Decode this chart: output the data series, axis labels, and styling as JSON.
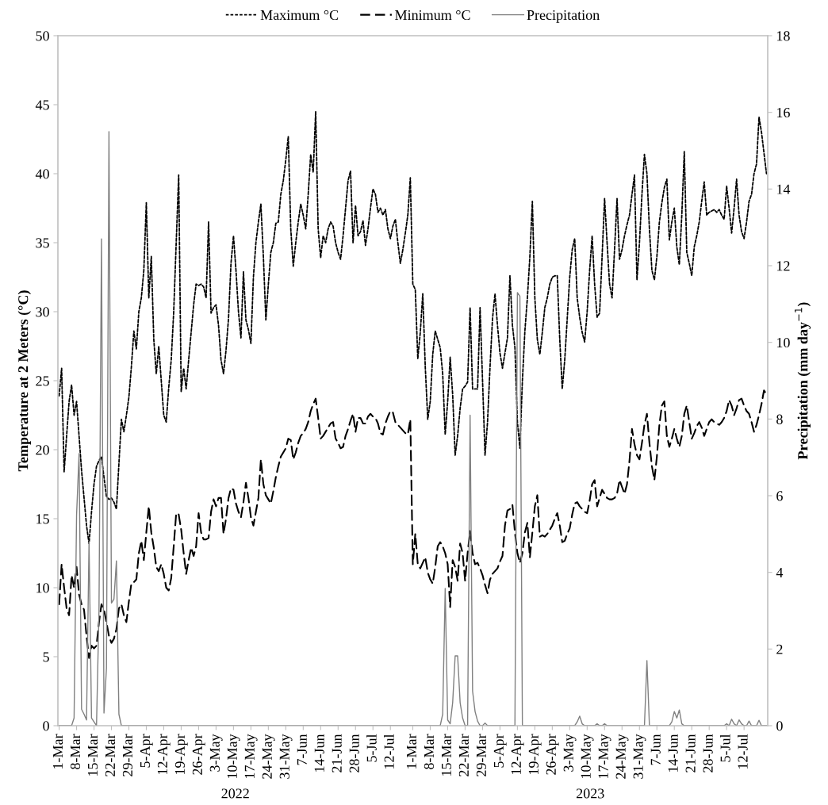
{
  "chart_data": {
    "type": "line",
    "categories": [
      "1-Mar",
      null,
      null,
      null,
      null,
      null,
      null,
      "8-Mar",
      null,
      null,
      null,
      null,
      null,
      null,
      "15-Mar",
      null,
      null,
      null,
      null,
      null,
      null,
      "22-Mar",
      null,
      null,
      null,
      null,
      null,
      null,
      "29-Mar",
      null,
      null,
      null,
      null,
      null,
      null,
      "5-Apr",
      null,
      null,
      null,
      null,
      null,
      null,
      "12-Apr",
      null,
      null,
      null,
      null,
      null,
      null,
      "19-Apr",
      null,
      null,
      null,
      null,
      null,
      null,
      "26-Apr",
      null,
      null,
      null,
      null,
      null,
      null,
      "3-May",
      null,
      null,
      null,
      null,
      null,
      null,
      "10-May",
      null,
      null,
      null,
      null,
      null,
      null,
      "17-May",
      null,
      null,
      null,
      null,
      null,
      null,
      "24-May",
      null,
      null,
      null,
      null,
      null,
      null,
      "31-May",
      null,
      null,
      null,
      null,
      null,
      null,
      "7-Jun",
      null,
      null,
      null,
      null,
      null,
      null,
      "14-Jun",
      null,
      null,
      null,
      null,
      null,
      null,
      "21-Jun",
      null,
      null,
      null,
      null,
      null,
      null,
      "28-Jun",
      null,
      null,
      null,
      null,
      null,
      null,
      "5-Jul",
      null,
      null,
      null,
      null,
      null,
      null,
      "12-Jul",
      null,
      null,
      null,
      null,
      null,
      null,
      null,
      null,
      "1-Mar",
      null,
      null,
      null,
      null,
      null,
      null,
      "8-Mar",
      null,
      null,
      null,
      null,
      null,
      null,
      "15-Mar",
      null,
      null,
      null,
      null,
      null,
      null,
      "22-Mar",
      null,
      null,
      null,
      null,
      null,
      null,
      "29-Mar",
      null,
      null,
      null,
      null,
      null,
      null,
      "5-Apr",
      null,
      null,
      null,
      null,
      null,
      null,
      "12-Apr",
      null,
      null,
      null,
      null,
      null,
      null,
      "19-Apr",
      null,
      null,
      null,
      null,
      null,
      null,
      "26-Apr",
      null,
      null,
      null,
      null,
      null,
      null,
      "3-May",
      null,
      null,
      null,
      null,
      null,
      null,
      "10-May",
      null,
      null,
      null,
      null,
      null,
      null,
      "17-May",
      null,
      null,
      null,
      null,
      null,
      null,
      "24-May",
      null,
      null,
      null,
      null,
      null,
      null,
      "31-May",
      null,
      null,
      null,
      null,
      null,
      null,
      "7-Jun",
      null,
      null,
      null,
      null,
      null,
      null,
      "14-Jun",
      null,
      null,
      null,
      null,
      null,
      null,
      "21-Jun",
      null,
      null,
      null,
      null,
      null,
      null,
      "28-Jun",
      null,
      null,
      null,
      null,
      null,
      null,
      "5-Jul",
      null,
      null,
      null,
      null,
      null,
      null,
      "12-Jul",
      null,
      null,
      null,
      null,
      null,
      null,
      null,
      null,
      null
    ],
    "series": [
      {
        "name": "Maximum °C",
        "color": "#000000",
        "line_style": "dotted",
        "values": [
          23.9,
          25.9,
          18.4,
          21,
          23.5,
          24.7,
          22.5,
          23.5,
          21,
          18.5,
          16.5,
          14.5,
          13.2,
          15.5,
          17.5,
          18.8,
          19.2,
          19.5,
          18,
          16.6,
          16.4,
          16.5,
          16.2,
          15.7,
          19,
          22.2,
          21.3,
          22.5,
          23.8,
          26,
          28.6,
          27.3,
          30,
          31,
          33,
          37.9,
          31,
          34,
          28,
          25.5,
          27.5,
          25,
          22.5,
          22,
          24.5,
          26.5,
          30,
          35,
          39.9,
          24.2,
          25.9,
          24.4,
          26.5,
          28.5,
          30.5,
          32,
          31.9,
          32,
          31.8,
          31,
          36.5,
          29.9,
          30.3,
          30.5,
          29,
          26.5,
          25.5,
          27.2,
          29.5,
          33.5,
          35.5,
          33,
          30,
          28.1,
          32.9,
          29.4,
          28.7,
          27.7,
          32.5,
          35,
          36.5,
          37.8,
          34,
          29.4,
          32,
          34.3,
          35,
          36.4,
          36.5,
          38.5,
          39.5,
          41,
          42.7,
          36,
          33.3,
          35,
          36.5,
          37.8,
          37,
          36,
          38.5,
          41.4,
          40.1,
          44.5,
          36,
          33.9,
          35.5,
          35,
          36,
          36.5,
          36.2,
          35,
          34.3,
          33.8,
          35.5,
          37.5,
          39.5,
          40.2,
          35,
          37.7,
          35.5,
          35.8,
          36.6,
          34.8,
          36,
          37.5,
          38.9,
          38.5,
          37.2,
          37.5,
          37,
          37.4,
          36,
          35.3,
          36.2,
          36.7,
          35,
          33.5,
          34.5,
          35.7,
          37,
          39.7,
          32,
          31.6,
          26.6,
          28.5,
          31.3,
          26,
          22.2,
          23.5,
          26.9,
          28.6,
          28,
          27.4,
          25.5,
          21.1,
          23.5,
          26.7,
          24,
          19.6,
          21,
          23,
          24.4,
          24.6,
          24.9,
          30.3,
          24.4,
          24.4,
          24.4,
          30.3,
          25,
          19.6,
          22,
          26,
          29.5,
          31.3,
          29,
          27,
          25.9,
          27,
          28.1,
          32.6,
          29,
          27.4,
          22,
          20.1,
          25,
          28.6,
          31,
          34,
          38,
          31,
          28,
          26.9,
          28.5,
          30.3,
          31,
          32,
          32.5,
          32.6,
          32.6,
          28,
          24.4,
          26.5,
          29.5,
          32.5,
          34.5,
          35.3,
          31,
          29.6,
          28.5,
          27.8,
          30,
          33,
          35.5,
          32,
          29.6,
          29.9,
          34,
          38.2,
          35,
          32,
          31,
          34.5,
          38.2,
          33.8,
          34.5,
          35.5,
          36.3,
          37,
          38.5,
          39.9,
          32.3,
          35,
          38.5,
          41.4,
          40,
          36,
          33,
          32.3,
          34,
          36.5,
          37.9,
          39,
          39.6,
          35.2,
          36.5,
          37.5,
          34.7,
          33.4,
          37,
          41.6,
          34.3,
          33.5,
          32.6,
          34.7,
          35.5,
          36.5,
          38,
          39.4,
          37,
          37.2,
          37.3,
          37.4,
          37.2,
          37.4,
          37,
          36.7,
          39.1,
          37.5,
          35.7,
          37.5,
          39.6,
          37,
          35.8,
          35.3,
          36.5,
          38,
          38.5,
          40,
          40.7,
          44.1,
          43,
          41.5,
          40
        ]
      },
      {
        "name": "Minimum °C",
        "color": "#000000",
        "line_style": "dashed",
        "values": [
          8.8,
          11.7,
          10,
          8.5,
          8,
          10.9,
          10,
          11.5,
          9.5,
          8.8,
          8.4,
          6.5,
          4.9,
          5.8,
          5.6,
          5.8,
          7.5,
          8.8,
          8.4,
          7.5,
          6.5,
          6,
          6.3,
          7,
          8.5,
          8.8,
          8,
          7.5,
          9,
          10.3,
          10.4,
          10.6,
          12.5,
          13.4,
          12,
          14,
          15.9,
          14,
          12.9,
          11.5,
          11.2,
          11.7,
          11,
          10,
          9.8,
          10.7,
          13,
          15.4,
          15.3,
          14.2,
          12.5,
          11,
          12,
          12.9,
          12.3,
          13,
          15.4,
          14,
          13.5,
          13.5,
          13.6,
          15.5,
          16.4,
          15.9,
          16.5,
          16.5,
          13.9,
          15,
          16.5,
          17.2,
          17.1,
          16.1,
          15.5,
          15.1,
          16.2,
          17.6,
          16.5,
          15.1,
          14.5,
          15.5,
          16.5,
          19.3,
          17.5,
          16.7,
          16.4,
          16.1,
          17,
          18,
          18.8,
          19.5,
          19.8,
          20.1,
          20.8,
          20.7,
          19.3,
          19.8,
          20.5,
          21,
          21.2,
          21.5,
          22,
          22.8,
          23.3,
          23.7,
          22.3,
          20.8,
          21,
          21.3,
          21.6,
          21.9,
          22,
          20.8,
          20.5,
          20.1,
          20.2,
          21,
          21.5,
          22.1,
          22.6,
          21.3,
          22.3,
          22.3,
          21.9,
          21.9,
          22.4,
          22.6,
          22.4,
          22.3,
          21.9,
          21.2,
          21.1,
          21.9,
          22.4,
          22.8,
          22.7,
          22,
          21.8,
          21.6,
          21.4,
          21.2,
          21.1,
          22.2,
          11.7,
          13.9,
          11.7,
          11.4,
          11.8,
          12.2,
          11.1,
          10.6,
          10.3,
          11.5,
          13,
          13.3,
          13,
          12.5,
          11.7,
          8.6,
          12,
          11.5,
          10.5,
          13.2,
          12.5,
          10.5,
          12.5,
          14.1,
          12.5,
          11.7,
          11.8,
          11.4,
          10.9,
          10.2,
          9.6,
          10.6,
          11,
          11.2,
          11.4,
          11.9,
          12.3,
          14.5,
          15.6,
          15.7,
          16,
          14,
          12.5,
          11.8,
          12.5,
          14,
          14.7,
          12.2,
          14,
          15.9,
          16.7,
          13.7,
          13.8,
          13.7,
          13.9,
          14.2,
          14.5,
          15,
          15.4,
          14.5,
          13.3,
          13.4,
          13.9,
          14.3,
          15.3,
          16.1,
          16.2,
          15.9,
          15.7,
          15.5,
          15.4,
          16.3,
          17.5,
          17.8,
          15.9,
          16.5,
          17.1,
          16.8,
          16.5,
          16.4,
          16.4,
          16.5,
          16.8,
          17.8,
          17.3,
          16.8,
          17.5,
          19.2,
          21.5,
          20.4,
          19.6,
          19.3,
          20.5,
          21.8,
          22.6,
          20.5,
          18.8,
          17.8,
          19.5,
          21.8,
          23.2,
          23.5,
          21,
          20.2,
          20.8,
          21.5,
          20.8,
          20.2,
          21,
          22.6,
          23.2,
          22,
          20.8,
          21.2,
          21.7,
          22,
          21.6,
          21,
          21.5,
          22,
          22.2,
          22,
          21.9,
          21.8,
          22,
          22.3,
          22.8,
          23.6,
          23.2,
          22.5,
          23,
          23.6,
          23.7,
          23.2,
          22.8,
          22.6,
          22,
          21.3,
          21.8,
          22.5,
          23.3,
          24.3,
          24
        ]
      },
      {
        "name": "Precipitation",
        "color": "#808080",
        "line_style": "solid",
        "axis": "y2",
        "values": [
          0,
          0,
          0,
          0,
          0,
          0,
          0.2,
          5.5,
          7.1,
          0.43,
          0.3,
          0.15,
          4.8,
          0.2,
          0.1,
          0,
          3,
          12.7,
          0.33,
          1.5,
          15.5,
          3.2,
          3.3,
          4.3,
          0.3,
          0,
          0,
          0,
          0,
          0,
          0,
          0,
          0,
          0,
          0,
          0,
          0,
          0,
          0,
          0,
          0,
          0,
          0,
          0,
          0,
          0,
          0,
          0,
          0,
          0,
          0,
          0,
          0,
          0,
          0,
          0,
          0,
          0,
          0,
          0,
          0,
          0,
          0,
          0,
          0,
          0,
          0,
          0,
          0,
          0,
          0,
          0,
          0,
          0,
          0,
          0,
          0,
          0,
          0,
          0,
          0,
          0,
          0,
          0,
          0,
          0,
          0,
          0,
          0,
          0,
          0,
          0,
          0,
          0,
          0,
          0,
          0,
          0,
          0,
          0,
          0,
          0,
          0,
          0,
          0,
          0,
          0,
          0,
          0,
          0,
          0,
          0,
          0,
          0,
          0,
          0,
          0,
          0,
          0,
          0,
          0,
          0,
          0,
          0,
          0,
          0,
          0,
          0,
          0,
          0,
          0,
          0,
          0,
          0,
          0,
          0,
          0,
          0,
          0,
          0,
          0,
          0,
          0,
          0,
          0,
          0,
          0,
          0,
          0,
          0,
          0,
          0,
          0,
          0,
          0.3,
          3.58,
          0.15,
          0.05,
          0.6,
          1.82,
          1.82,
          0.6,
          0.2,
          0,
          0,
          8.1,
          0.9,
          0.37,
          0.12,
          0,
          0,
          0.07,
          0,
          0,
          0,
          0,
          0,
          0,
          0,
          0,
          0,
          0,
          0,
          0,
          11.3,
          11.2,
          0,
          0,
          0,
          0,
          0,
          0,
          0,
          0,
          0,
          0,
          0,
          0,
          0,
          0,
          0,
          0,
          0,
          0,
          0,
          0,
          0,
          0,
          0.1,
          0.25,
          0.05,
          0,
          0,
          0,
          0,
          0,
          0.05,
          0,
          0,
          0.05,
          0,
          0,
          0,
          0,
          0,
          0,
          0,
          0,
          0,
          0,
          0,
          0,
          0,
          0,
          0,
          0,
          1.7,
          0,
          0,
          0,
          0,
          0,
          0,
          0,
          0,
          0,
          0.1,
          0.37,
          0.2,
          0.41,
          0.05,
          0,
          0,
          0,
          0,
          0,
          0,
          0,
          0,
          0,
          0,
          0,
          0,
          0,
          0,
          0,
          0,
          0,
          0.05,
          0,
          0.17,
          0.05,
          0,
          0.15,
          0.05,
          0,
          0,
          0.12,
          0,
          0,
          0,
          0.14,
          0,
          0,
          0
        ]
      }
    ],
    "ylabel": "Temperature at 2 Meters (°C)",
    "y2label": "Precipitation (mm day$^{−1}$)",
    "ylim": [
      0,
      50
    ],
    "yticks": [
      0,
      5,
      10,
      15,
      20,
      25,
      30,
      35,
      40,
      45,
      50
    ],
    "y2lim": [
      0,
      18
    ],
    "y2ticks": [
      0,
      2,
      4,
      6,
      8,
      10,
      12,
      14,
      16,
      18
    ],
    "legend": "top",
    "annotations": [
      "2022",
      "2023"
    ]
  }
}
